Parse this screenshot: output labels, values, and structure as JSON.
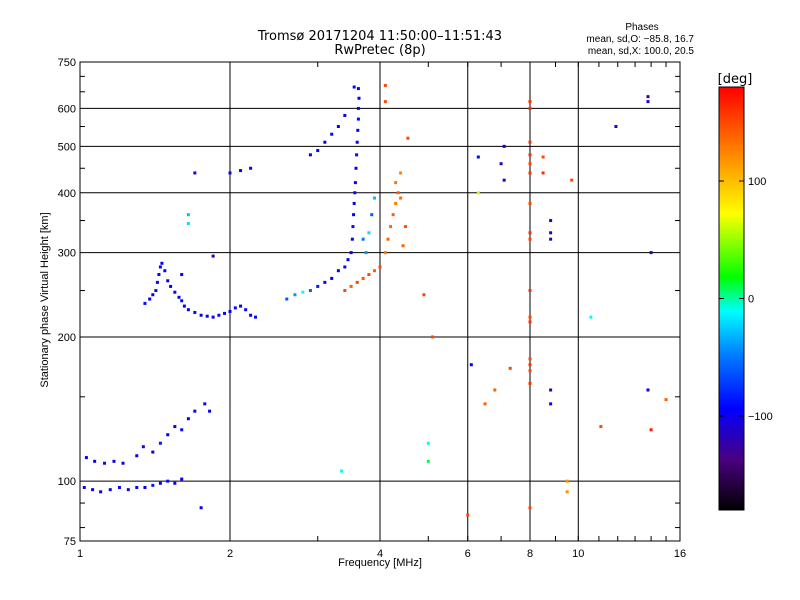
{
  "chart_data": {
    "type": "scatter",
    "title": "Tromsø 20171204 11:50:00–11:51:43",
    "subtitle": "RwPretec (8p)",
    "stats": {
      "heading": "Phases",
      "line1": "mean, sd,O: −85.8, 16.7",
      "line2": "mean, sd,X: 100.0, 20.5"
    },
    "xlabel": "Frequency [MHz]",
    "ylabel": "Stationary phase Virtual Height [km]",
    "xscale": "log",
    "yscale": "log",
    "xlim": [
      1,
      16
    ],
    "ylim": [
      75,
      750
    ],
    "xticks": [
      1,
      2,
      4,
      6,
      8,
      10,
      16
    ],
    "xtick_labels": [
      "1",
      "2",
      "4",
      "6",
      "8",
      "10",
      "16"
    ],
    "yticks": [
      75,
      100,
      200,
      300,
      400,
      500,
      600,
      750
    ],
    "ytick_labels": [
      "75",
      "100",
      "200",
      "300",
      "400",
      "500",
      "600",
      "750"
    ],
    "grid": true,
    "colorbar": {
      "label": "[deg]",
      "range": [
        -180,
        180
      ],
      "ticks": [
        100,
        0,
        -100
      ],
      "tick_labels": [
        "100",
        "0",
        "−100"
      ]
    },
    "series": [
      {
        "points": [
          [
            1.02,
            97,
            -100
          ],
          [
            1.06,
            96,
            -95
          ],
          [
            1.1,
            95,
            -105
          ],
          [
            1.15,
            96,
            -90
          ],
          [
            1.2,
            97,
            -100
          ],
          [
            1.25,
            96,
            -110
          ],
          [
            1.3,
            97,
            -95
          ],
          [
            1.35,
            97,
            -100
          ],
          [
            1.4,
            98,
            -85
          ],
          [
            1.45,
            99,
            -100
          ],
          [
            1.5,
            100,
            -90
          ],
          [
            1.55,
            99,
            -105
          ],
          [
            1.6,
            101,
            -95
          ],
          [
            1.75,
            88,
            -100
          ],
          [
            1.03,
            112,
            -95
          ],
          [
            1.07,
            110,
            -100
          ],
          [
            1.12,
            109,
            -90
          ],
          [
            1.17,
            110,
            -100
          ],
          [
            1.22,
            109,
            -95
          ],
          [
            1.3,
            113,
            -100
          ],
          [
            1.34,
            118,
            -90
          ],
          [
            1.4,
            115,
            -100
          ],
          [
            1.45,
            120,
            -85
          ],
          [
            1.5,
            125,
            -95
          ],
          [
            1.55,
            130,
            -100
          ],
          [
            1.6,
            128,
            -90
          ],
          [
            1.65,
            135,
            -95
          ],
          [
            1.7,
            140,
            -100
          ],
          [
            1.78,
            145,
            -90
          ],
          [
            1.82,
            140,
            -95
          ],
          [
            1.35,
            235,
            -90
          ],
          [
            1.38,
            240,
            -95
          ],
          [
            1.4,
            245,
            -100
          ],
          [
            1.42,
            250,
            -90
          ],
          [
            1.43,
            260,
            -100
          ],
          [
            1.44,
            270,
            -95
          ],
          [
            1.45,
            280,
            -105
          ],
          [
            1.46,
            285,
            -95
          ],
          [
            1.48,
            275,
            -90
          ],
          [
            1.5,
            262,
            -100
          ],
          [
            1.52,
            255,
            -95
          ],
          [
            1.55,
            248,
            -90
          ],
          [
            1.58,
            242,
            -100
          ],
          [
            1.6,
            270,
            -95
          ],
          [
            1.6,
            238,
            -90
          ],
          [
            1.62,
            232,
            -100
          ],
          [
            1.65,
            228,
            -95
          ],
          [
            1.7,
            225,
            -90
          ],
          [
            1.75,
            222,
            -100
          ],
          [
            1.8,
            221,
            -95
          ],
          [
            1.85,
            220,
            -105
          ],
          [
            1.9,
            222,
            -90
          ],
          [
            1.95,
            224,
            -100
          ],
          [
            2.0,
            226,
            -95
          ],
          [
            2.05,
            230,
            -90
          ],
          [
            2.1,
            232,
            -100
          ],
          [
            2.15,
            228,
            -95
          ],
          [
            2.2,
            222,
            -100
          ],
          [
            2.25,
            220,
            -90
          ],
          [
            1.7,
            440,
            -110
          ],
          [
            2.0,
            440,
            -100
          ],
          [
            2.1,
            445,
            -95
          ],
          [
            2.2,
            450,
            -100
          ],
          [
            1.85,
            295,
            -110
          ],
          [
            1.65,
            345,
            -20
          ],
          [
            1.65,
            360,
            -30
          ],
          [
            2.6,
            240,
            -60
          ],
          [
            2.7,
            245,
            -40
          ],
          [
            2.8,
            248,
            -10
          ],
          [
            2.9,
            250,
            -60
          ],
          [
            3.0,
            255,
            -85
          ],
          [
            3.1,
            260,
            -90
          ],
          [
            3.2,
            265,
            -95
          ],
          [
            3.3,
            275,
            -100
          ],
          [
            3.4,
            280,
            -90
          ],
          [
            3.45,
            290,
            -100
          ],
          [
            3.5,
            300,
            -95
          ],
          [
            3.52,
            320,
            -100
          ],
          [
            3.53,
            340,
            -90
          ],
          [
            3.54,
            360,
            -95
          ],
          [
            3.55,
            380,
            -100
          ],
          [
            3.56,
            400,
            -90
          ],
          [
            3.57,
            420,
            -100
          ],
          [
            3.58,
            450,
            -95
          ],
          [
            3.59,
            480,
            -90
          ],
          [
            3.6,
            510,
            -100
          ],
          [
            3.61,
            540,
            -95
          ],
          [
            3.62,
            570,
            -90
          ],
          [
            3.62,
            600,
            -100
          ],
          [
            3.63,
            630,
            -95
          ],
          [
            3.62,
            660,
            -100
          ],
          [
            3.55,
            665,
            -90
          ],
          [
            2.9,
            480,
            -100
          ],
          [
            3.0,
            490,
            -95
          ],
          [
            3.1,
            510,
            -100
          ],
          [
            3.2,
            530,
            -90
          ],
          [
            3.3,
            550,
            -95
          ],
          [
            3.4,
            580,
            -100
          ],
          [
            3.75,
            300,
            -40
          ],
          [
            3.8,
            330,
            -20
          ],
          [
            3.85,
            360,
            -60
          ],
          [
            3.9,
            390,
            -30
          ],
          [
            3.7,
            320,
            -50
          ],
          [
            3.4,
            250,
            150
          ],
          [
            3.5,
            255,
            140
          ],
          [
            3.6,
            260,
            150
          ],
          [
            3.7,
            265,
            145
          ],
          [
            3.8,
            270,
            150
          ],
          [
            3.9,
            275,
            140
          ],
          [
            4.0,
            280,
            150
          ],
          [
            4.1,
            300,
            130
          ],
          [
            4.15,
            320,
            140
          ],
          [
            4.2,
            340,
            135
          ],
          [
            4.25,
            360,
            140
          ],
          [
            4.3,
            380,
            130
          ],
          [
            4.35,
            400,
            140
          ],
          [
            4.4,
            390,
            135
          ],
          [
            4.5,
            340,
            145
          ],
          [
            4.45,
            310,
            140
          ],
          [
            4.3,
            420,
            130
          ],
          [
            4.4,
            440,
            125
          ],
          [
            4.55,
            520,
            150
          ],
          [
            4.1,
            670,
            150
          ],
          [
            4.1,
            620,
            150
          ],
          [
            5.1,
            200,
            150
          ],
          [
            4.9,
            245,
            150
          ],
          [
            5.0,
            120,
            -10
          ],
          [
            5.0,
            110,
            10
          ],
          [
            6.0,
            85,
            150
          ],
          [
            6.1,
            175,
            -100
          ],
          [
            6.3,
            475,
            -90
          ],
          [
            6.3,
            400,
            60
          ],
          [
            6.5,
            145,
            140
          ],
          [
            6.8,
            155,
            140
          ],
          [
            7.1,
            500,
            -100
          ],
          [
            7.1,
            425,
            -110
          ],
          [
            7.3,
            172,
            150
          ],
          [
            7.0,
            460,
            -110
          ],
          [
            8.0,
            620,
            160
          ],
          [
            8.0,
            600,
            160
          ],
          [
            8.0,
            510,
            160
          ],
          [
            8.0,
            480,
            160
          ],
          [
            8.0,
            460,
            150
          ],
          [
            8.0,
            440,
            160
          ],
          [
            8.0,
            380,
            150
          ],
          [
            8.0,
            330,
            160
          ],
          [
            8.0,
            320,
            150
          ],
          [
            8.0,
            250,
            160
          ],
          [
            8.0,
            220,
            150
          ],
          [
            8.0,
            215,
            160
          ],
          [
            8.0,
            180,
            150
          ],
          [
            8.0,
            175,
            160
          ],
          [
            8.0,
            170,
            150
          ],
          [
            8.0,
            160,
            160
          ],
          [
            8.0,
            88,
            150
          ],
          [
            8.5,
            475,
            150
          ],
          [
            8.5,
            440,
            160
          ],
          [
            8.8,
            350,
            -120
          ],
          [
            8.8,
            330,
            -110
          ],
          [
            8.8,
            320,
            -130
          ],
          [
            8.8,
            155,
            -120
          ],
          [
            8.8,
            145,
            -100
          ],
          [
            9.5,
            100,
            120
          ],
          [
            9.5,
            95,
            120
          ],
          [
            9.7,
            425,
            150
          ],
          [
            10.6,
            220,
            -10
          ],
          [
            11.1,
            130,
            150
          ],
          [
            11.9,
            550,
            -110
          ],
          [
            13.8,
            635,
            -130
          ],
          [
            13.8,
            620,
            -110
          ],
          [
            14.0,
            300,
            -120
          ],
          [
            13.8,
            155,
            -100
          ],
          [
            14.0,
            128,
            170
          ],
          [
            15.0,
            148,
            140
          ],
          [
            3.35,
            105,
            -10
          ]
        ]
      }
    ]
  }
}
